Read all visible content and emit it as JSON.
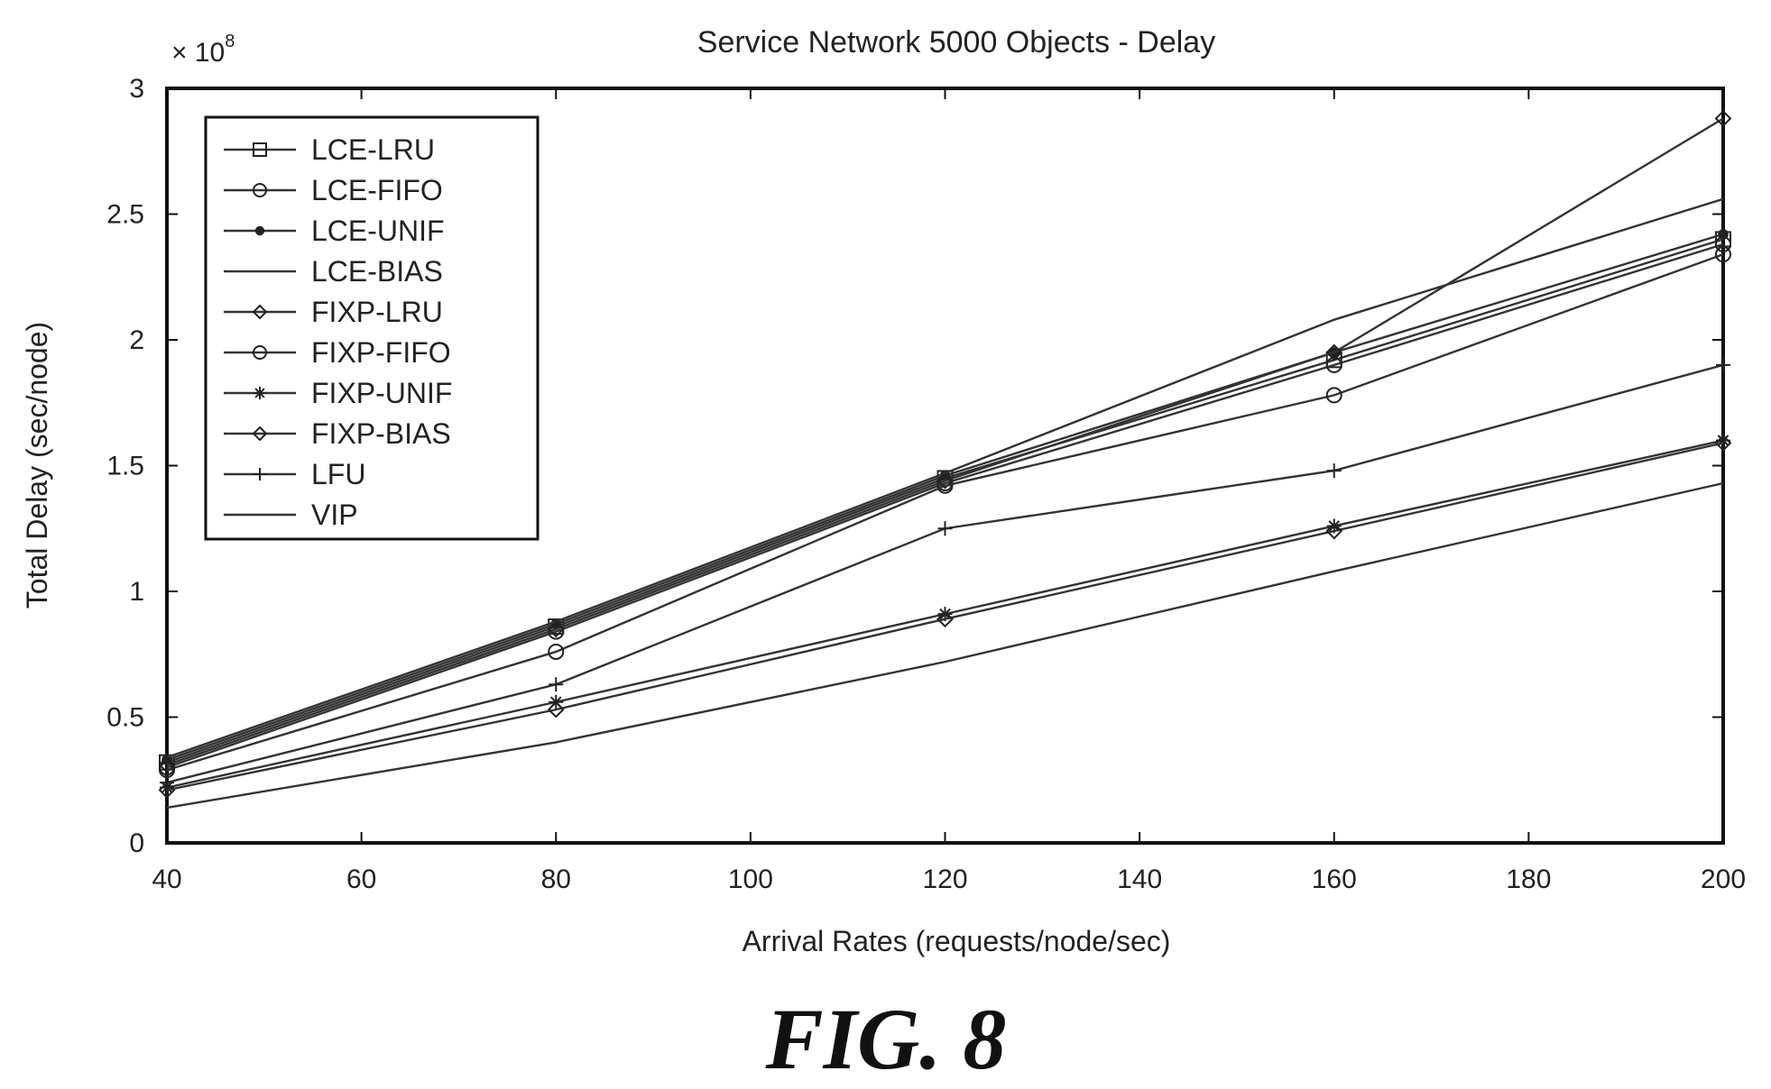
{
  "figure_label": "FIG. 8",
  "chart_data": {
    "type": "line",
    "title": "Service Network 5000 Objects - Delay",
    "xlabel": "Arrival Rates (requests/node/sec)",
    "ylabel": "Total Delay (sec/node)",
    "y_multiplier_label": "× 10",
    "y_multiplier_exponent": "8",
    "xlim": [
      40,
      200
    ],
    "ylim": [
      0,
      3
    ],
    "x_ticks": [
      "40",
      "60",
      "80",
      "100",
      "120",
      "140",
      "160",
      "180",
      "200"
    ],
    "y_ticks": [
      "0",
      "0.5",
      "1",
      "1.5",
      "2",
      "2.5",
      "3"
    ],
    "grid": false,
    "legend_position": "top-left",
    "x": [
      40,
      80,
      120,
      160,
      200
    ],
    "series": [
      {
        "name": "LCE-LRU",
        "marker": "square",
        "values": [
          0.32,
          0.86,
          1.45,
          1.92,
          2.4
        ]
      },
      {
        "name": "LCE-FIFO",
        "marker": "circle",
        "values": [
          0.3,
          0.84,
          1.43,
          1.9,
          2.38
        ]
      },
      {
        "name": "LCE-UNIF",
        "marker": "dot",
        "values": [
          0.33,
          0.87,
          1.46,
          1.95,
          2.42
        ]
      },
      {
        "name": "LCE-BIAS",
        "marker": "none",
        "values": [
          0.34,
          0.88,
          1.47,
          2.08,
          2.56
        ]
      },
      {
        "name": "FIXP-LRU",
        "marker": "diamond",
        "values": [
          0.31,
          0.85,
          1.44,
          1.95,
          2.88
        ]
      },
      {
        "name": "FIXP-FIFO",
        "marker": "circle",
        "values": [
          0.29,
          0.76,
          1.42,
          1.78,
          2.34
        ]
      },
      {
        "name": "FIXP-UNIF",
        "marker": "star",
        "values": [
          0.22,
          0.56,
          0.91,
          1.26,
          1.6
        ]
      },
      {
        "name": "FIXP-BIAS",
        "marker": "diamond",
        "values": [
          0.21,
          0.53,
          0.89,
          1.24,
          1.59
        ]
      },
      {
        "name": "LFU",
        "marker": "plus",
        "values": [
          0.24,
          0.63,
          1.25,
          1.48,
          1.9
        ]
      },
      {
        "name": "VIP",
        "marker": "none",
        "values": [
          0.14,
          0.4,
          0.72,
          1.08,
          1.43
        ]
      }
    ]
  }
}
